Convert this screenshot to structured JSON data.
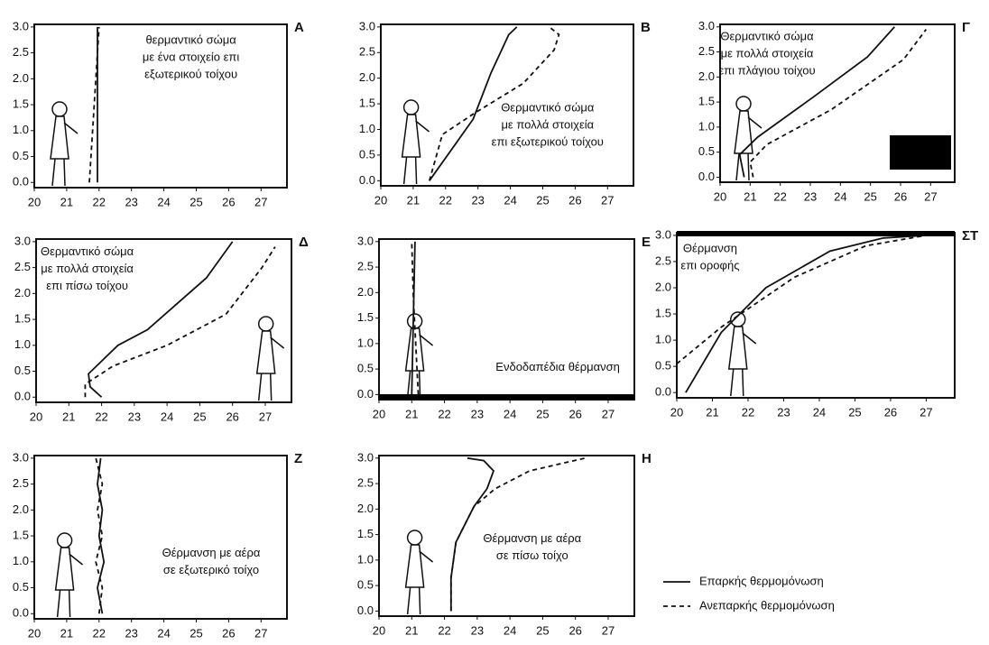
{
  "chart_data": [
    {
      "type": "line",
      "label": "Α",
      "annotation": [
        "θερμαντικό σώμα",
        "με ένα στοιχείο επι",
        "εξωτερικού τοίχου"
      ],
      "xlim": [
        20,
        27.8
      ],
      "ylim": [
        -0.1,
        3.05
      ],
      "xticks": [
        20,
        21,
        22,
        23,
        24,
        25,
        26,
        27
      ],
      "yticks": [
        {
          "value": 0,
          "label": "0.0"
        },
        {
          "value": 0.5,
          "label": "0.5"
        },
        {
          "value": 1,
          "label": "1.0"
        },
        {
          "value": 1.5,
          "label": "1.5"
        },
        {
          "value": 2,
          "label": "2.0"
        },
        {
          "value": 2.5,
          "label": "2.5"
        },
        {
          "value": 3,
          "label": "3.0"
        }
      ],
      "series": [
        {
          "style": "solid",
          "x": [
            21.95,
            21.95
          ],
          "y": [
            0,
            3.0
          ]
        },
        {
          "style": "dashed",
          "x": [
            21.7,
            21.8,
            21.9,
            22.0
          ],
          "y": [
            0,
            1,
            2,
            3
          ]
        }
      ]
    },
    {
      "type": "line",
      "label": "Β",
      "annotation": [
        "Θερμαντικό σώμα",
        "με πολλά στοιχεία",
        "επι εξωτερικού τοίχου"
      ],
      "xlim": [
        20,
        27.8
      ],
      "ylim": [
        -0.1,
        3.05
      ],
      "xticks": [
        20,
        21,
        22,
        23,
        24,
        25,
        26,
        27
      ],
      "yticks": [
        {
          "value": 0,
          "label": "0.0"
        },
        {
          "value": 0.5,
          "label": "0.5"
        },
        {
          "value": 1,
          "label": "1.0"
        },
        {
          "value": 1.5,
          "label": "1.5"
        },
        {
          "value": 2,
          "label": "2.0"
        },
        {
          "value": 2.5,
          "label": "2.5"
        },
        {
          "value": 3,
          "label": "3.0"
        }
      ],
      "series": [
        {
          "style": "solid",
          "x": [
            21.5,
            22.85,
            23.4,
            23.95,
            24.2
          ],
          "y": [
            0,
            1.2,
            2.1,
            2.85,
            3.0
          ]
        },
        {
          "style": "dashed",
          "x": [
            21.5,
            21.9,
            22.85,
            24.4,
            25.35,
            25.5,
            25.2
          ],
          "y": [
            0,
            0.9,
            1.3,
            1.9,
            2.55,
            2.85,
            3.0
          ]
        }
      ]
    },
    {
      "type": "line",
      "label": "Γ",
      "annotation": [
        "Θερμαντικό σώμα",
        "με πολλά στοιχεία",
        "επι πλάγιου τοίχου"
      ],
      "xlim": [
        20,
        27.8
      ],
      "ylim": [
        -0.1,
        3.05
      ],
      "xticks": [
        20,
        21,
        22,
        23,
        24,
        25,
        26,
        27
      ],
      "yticks": [
        {
          "value": 0,
          "label": "0.0"
        },
        {
          "value": 0.5,
          "label": "0.5"
        },
        {
          "value": 1,
          "label": "1.0"
        },
        {
          "value": 1.5,
          "label": "1.5"
        },
        {
          "value": 2,
          "label": "2.0"
        },
        {
          "value": 2.5,
          "label": "2.5"
        },
        {
          "value": 3,
          "label": "3.0"
        }
      ],
      "series": [
        {
          "style": "solid",
          "x": [
            20.8,
            20.65,
            21.25,
            23.1,
            24.9,
            25.8
          ],
          "y": [
            0,
            0.45,
            0.8,
            1.6,
            2.4,
            3.0
          ]
        },
        {
          "style": "dashed",
          "x": [
            21.1,
            21.0,
            21.55,
            23.7,
            26.1,
            26.85
          ],
          "y": [
            0,
            0.3,
            0.65,
            1.35,
            2.35,
            2.95
          ]
        }
      ]
    },
    {
      "type": "line",
      "label": "Δ",
      "annotation": [
        "Θερμαντικό σώμα",
        "με πολλά στοιχεία",
        "επι πίσω τοίχου"
      ],
      "xlim": [
        20,
        27.8
      ],
      "ylim": [
        -0.1,
        3.05
      ],
      "xticks": [
        20,
        21,
        22,
        23,
        24,
        25,
        26,
        27
      ],
      "yticks": [
        {
          "value": 0,
          "label": "0.0"
        },
        {
          "value": 0.5,
          "label": "0.5"
        },
        {
          "value": 1,
          "label": "1.0"
        },
        {
          "value": 1.5,
          "label": "1.5"
        },
        {
          "value": 2,
          "label": "2.0"
        },
        {
          "value": 2.5,
          "label": "2.5"
        },
        {
          "value": 3,
          "label": "3.0"
        }
      ],
      "series": [
        {
          "style": "solid",
          "x": [
            22.0,
            21.65,
            21.6,
            22.5,
            23.4,
            25.2,
            26.0
          ],
          "y": [
            0,
            0.2,
            0.45,
            1.0,
            1.3,
            2.3,
            3.0
          ]
        },
        {
          "style": "dashed",
          "x": [
            21.5,
            21.5,
            22.35,
            24.0,
            25.8,
            26.9,
            27.3
          ],
          "y": [
            0,
            0.25,
            0.6,
            1.0,
            1.6,
            2.5,
            2.9
          ]
        }
      ]
    },
    {
      "type": "line",
      "label": "Ε",
      "annotation": [
        "Ενδοδαπέδια θέρμανση"
      ],
      "xlim": [
        20,
        27.8
      ],
      "ylim": [
        -0.1,
        3.05
      ],
      "xticks": [
        20,
        21,
        22,
        23,
        24,
        25,
        26,
        27
      ],
      "yticks": [
        {
          "value": 0,
          "label": "0.0"
        },
        {
          "value": 0.5,
          "label": "0.5"
        },
        {
          "value": 1,
          "label": "1.0"
        },
        {
          "value": 1.5,
          "label": "1.5"
        },
        {
          "value": 2,
          "label": "2.0"
        },
        {
          "value": 2.5,
          "label": "2.5"
        },
        {
          "value": 3,
          "label": "3.0"
        }
      ],
      "series": [
        {
          "style": "solid",
          "x": [
            21.0,
            21.05,
            21.1
          ],
          "y": [
            0,
            1.5,
            3.0
          ]
        },
        {
          "style": "dashed",
          "x": [
            21.2,
            21.05,
            21.0
          ],
          "y": [
            0,
            1.9,
            3.0
          ]
        }
      ]
    },
    {
      "type": "line",
      "label": "ΣΤ",
      "annotation": [
        "Θέρμανση",
        "επι οροφής"
      ],
      "xlim": [
        20,
        27.8
      ],
      "ylim": [
        -0.1,
        3.05
      ],
      "xticks": [
        20,
        21,
        22,
        23,
        24,
        25,
        26,
        27
      ],
      "yticks": [
        {
          "value": 0,
          "label": "0.0"
        },
        {
          "value": 0.5,
          "label": "0.5"
        },
        {
          "value": 1,
          "label": "1.0"
        },
        {
          "value": 1.5,
          "label": "1.5"
        },
        {
          "value": 2,
          "label": "2.0"
        },
        {
          "value": 2.5,
          "label": "2.5"
        },
        {
          "value": 3,
          "label": "3.0"
        }
      ],
      "series": [
        {
          "style": "solid",
          "x": [
            20.25,
            21.25,
            22.5,
            24.3,
            25.8,
            27.0
          ],
          "y": [
            0,
            1.15,
            2.0,
            2.7,
            2.95,
            3.0
          ]
        },
        {
          "style": "dashed",
          "x": [
            20.0,
            21.25,
            23.3,
            25.3,
            27.0
          ],
          "y": [
            0.55,
            1.25,
            2.2,
            2.8,
            3.0
          ]
        }
      ]
    },
    {
      "type": "line",
      "label": "Ζ",
      "annotation": [
        "Θέρμανση με αέρα",
        "σε εξωτερικό τοίχο"
      ],
      "xlim": [
        20,
        27.8
      ],
      "ylim": [
        -0.1,
        3.05
      ],
      "xticks": [
        20,
        21,
        22,
        23,
        24,
        25,
        26,
        27
      ],
      "yticks": [
        {
          "value": 0,
          "label": "0.0"
        },
        {
          "value": 0.5,
          "label": "0.5"
        },
        {
          "value": 1,
          "label": "1.0"
        },
        {
          "value": 1.5,
          "label": "1.5"
        },
        {
          "value": 2,
          "label": "2.0"
        },
        {
          "value": 2.5,
          "label": "2.5"
        },
        {
          "value": 3,
          "label": "3.0"
        }
      ],
      "series": [
        {
          "style": "solid",
          "x": [
            22.1,
            21.95,
            22.15,
            22.0,
            22.1,
            21.95,
            22.05
          ],
          "y": [
            0,
            0.5,
            1,
            1.5,
            2,
            2.5,
            3
          ]
        },
        {
          "style": "dashed",
          "x": [
            22.0,
            22.1,
            21.9,
            22.1,
            21.95,
            22.1,
            21.9
          ],
          "y": [
            0,
            0.5,
            1,
            1.5,
            2,
            2.5,
            3
          ]
        }
      ]
    },
    {
      "type": "line",
      "label": "Η",
      "annotation": [
        "Θέρμανση με αέρα",
        "σε πίσω τοίχο"
      ],
      "xlim": [
        20,
        27.8
      ],
      "ylim": [
        -0.1,
        3.05
      ],
      "xticks": [
        20,
        21,
        22,
        23,
        24,
        25,
        26,
        27
      ],
      "yticks": [
        {
          "value": 0,
          "label": "0.0"
        },
        {
          "value": 0.5,
          "label": "0.5"
        },
        {
          "value": 1,
          "label": "1.0"
        },
        {
          "value": 1.5,
          "label": "1.5"
        },
        {
          "value": 2,
          "label": "2.0"
        },
        {
          "value": 2.5,
          "label": "2.5"
        },
        {
          "value": 3,
          "label": "3.0"
        }
      ],
      "series": [
        {
          "name": "Επαρκής θερμομόνωση",
          "style": "solid",
          "x": [
            22.2,
            22.2,
            22.35,
            22.9,
            23.3,
            23.5,
            23.2,
            22.7
          ],
          "y": [
            0,
            0.65,
            1.35,
            2.05,
            2.4,
            2.75,
            2.95,
            3.0
          ]
        },
        {
          "name": "Ανεπαρκής θερμομόνωση",
          "style": "dashed",
          "x": [
            22.2,
            22.2,
            22.35,
            22.9,
            23.55,
            24.6,
            26.3
          ],
          "y": [
            0,
            0.65,
            1.35,
            2.05,
            2.4,
            2.75,
            3.0
          ]
        }
      ]
    }
  ]
}
